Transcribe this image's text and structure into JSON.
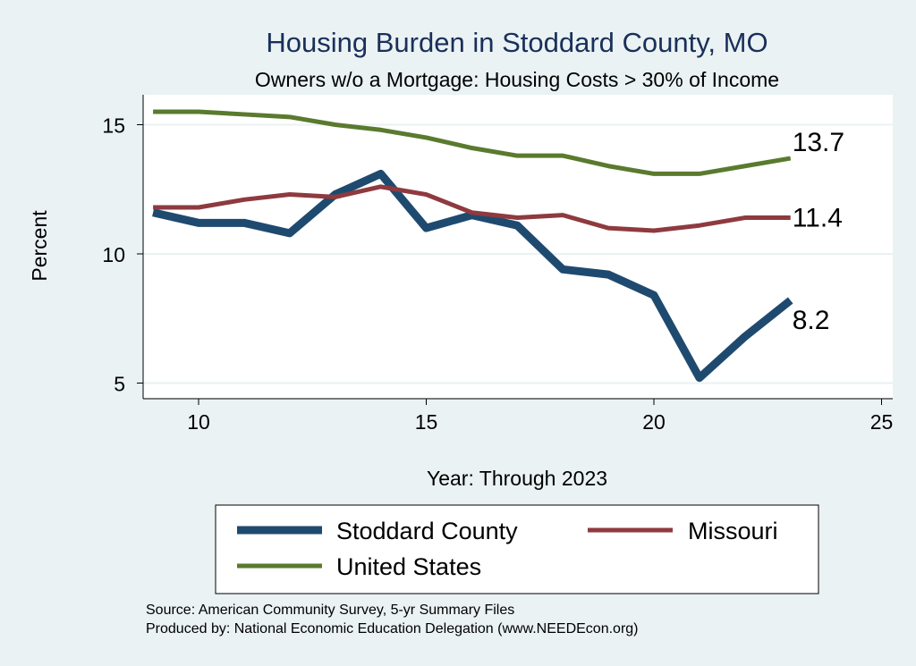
{
  "chart_data": {
    "type": "line",
    "title": "Housing Burden in Stoddard County, MO",
    "subtitle": "Owners w/o a Mortgage: Housing Costs > 30% of Income",
    "xlabel": "Year: Through 2023",
    "ylabel": "Percent",
    "xlim": [
      8.7,
      25.5
    ],
    "ylim": [
      4.4,
      16.3
    ],
    "xticks": [
      10,
      15,
      20,
      25
    ],
    "yticks": [
      5,
      10,
      15
    ],
    "grid": true,
    "legend_position": "bottom",
    "x": [
      9,
      10,
      11,
      12,
      13,
      14,
      15,
      16,
      17,
      18,
      19,
      20,
      21,
      22,
      23
    ],
    "series": [
      {
        "name": "Stoddard County",
        "color": "#1f4a70",
        "width": 9,
        "end_label": "8.2",
        "values": [
          11.6,
          11.2,
          11.2,
          10.8,
          12.3,
          13.1,
          11.0,
          11.5,
          11.1,
          9.4,
          9.2,
          8.4,
          5.2,
          6.8,
          8.2
        ]
      },
      {
        "name": "Missouri",
        "color": "#8e3a3f",
        "width": 5,
        "end_label": "11.4",
        "values": [
          11.8,
          11.8,
          12.1,
          12.3,
          12.2,
          12.6,
          12.3,
          11.6,
          11.4,
          11.5,
          11.0,
          10.9,
          11.1,
          11.4,
          11.4
        ]
      },
      {
        "name": "United States",
        "color": "#5a7a2e",
        "width": 5,
        "end_label": "13.7",
        "values": [
          15.5,
          15.5,
          15.4,
          15.3,
          15.0,
          14.8,
          14.5,
          14.1,
          13.8,
          13.8,
          13.4,
          13.1,
          13.1,
          13.4,
          13.7
        ]
      }
    ],
    "notes": [
      "Source: American Community Survey, 5-yr Summary Files",
      "Produced by: National Economic Education Delegation (www.NEEDEcon.org)"
    ]
  }
}
